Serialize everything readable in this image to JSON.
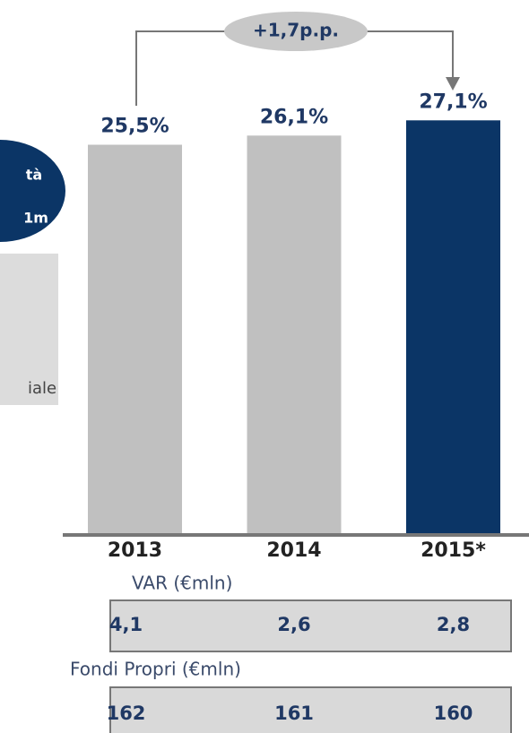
{
  "chart_data": {
    "type": "bar",
    "categories": [
      "2013",
      "2014",
      "2015*"
    ],
    "values": [
      25.5,
      26.1,
      27.1
    ],
    "value_labels": [
      "25,5%",
      "26,1%",
      "27,1%"
    ],
    "colors": [
      "#c0c0c0",
      "#c0c0c0",
      "#0b3566"
    ],
    "ylim": [
      0,
      35
    ],
    "annotation": "+1,7p.p."
  },
  "callout": {
    "lines": [
      "tà",
      "1m"
    ]
  },
  "note": "iale",
  "tables": [
    {
      "title": "VAR (€mln)",
      "cells": [
        "4,1",
        "2,6",
        "2,8"
      ]
    },
    {
      "title": "Fondi Propri (€mln)",
      "cells": [
        "162",
        "161",
        "160"
      ]
    }
  ]
}
